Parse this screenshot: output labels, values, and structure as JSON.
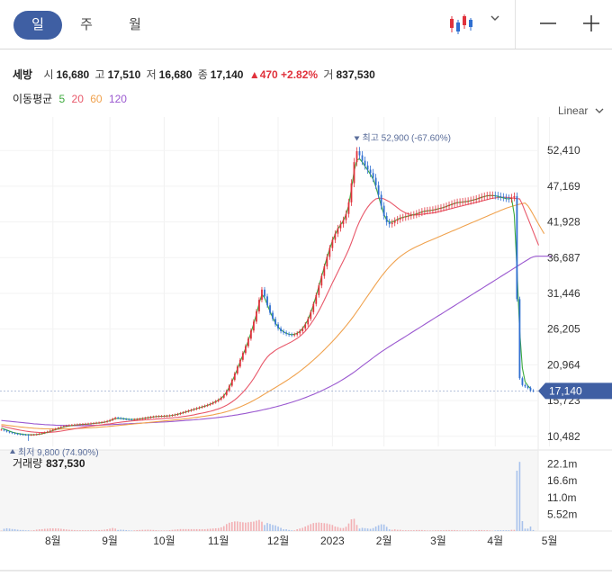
{
  "toolbar": {
    "tabs": [
      {
        "label": "일",
        "active": true
      },
      {
        "label": "주",
        "active": false
      },
      {
        "label": "월",
        "active": false
      }
    ],
    "chart_type_icon": "candlestick-icon",
    "caret_icon": "chevron-down-icon",
    "zoom_out_icon": "minus-icon",
    "zoom_in_icon": "plus-icon"
  },
  "quote": {
    "name": "세방",
    "open_label": "시",
    "open": "16,680",
    "high_label": "고",
    "high": "17,510",
    "low_label": "저",
    "low": "16,680",
    "close_label": "종",
    "close": "17,140",
    "change": "▲470 +2.82%",
    "volume_label": "거",
    "volume": "837,530"
  },
  "moving_average": {
    "label": "이동평균",
    "periods": [
      {
        "value": "5",
        "color": "#3daa3d"
      },
      {
        "value": "20",
        "color": "#e8586a"
      },
      {
        "value": "60",
        "color": "#f0a24e"
      },
      {
        "value": "120",
        "color": "#9b59d0"
      }
    ]
  },
  "scale_label": "Linear",
  "colors": {
    "up": "#e0323c",
    "down": "#2f6fd1",
    "current_price": "#3f5fa3",
    "annotation": "#5b6e9b"
  },
  "volume_panel": {
    "label": "거래량",
    "value": "837,530"
  },
  "chart_data": {
    "type": "candlestick",
    "y_axis_ticks": [
      "52,410",
      "47,169",
      "41,928",
      "36,687",
      "31,446",
      "26,205",
      "20,964",
      "15,723",
      "10,482"
    ],
    "y_range": [
      9000,
      56000
    ],
    "current_price_label": "17,140",
    "current_price": 17140,
    "max_annotation": "최고 52,900 (-67.60%)",
    "max_value": 52900,
    "min_annotation": "최저 9,800 (74.90%)",
    "min_value": 9800,
    "x_labels": [
      "8월",
      "9월",
      "10월",
      "11월",
      "12월",
      "2023",
      "2월",
      "3월",
      "4월",
      "5월"
    ],
    "x_label_index": [
      19,
      40,
      60,
      80,
      102,
      122,
      141,
      161,
      182,
      202
    ],
    "close": [
      11450,
      11330,
      11180,
      11050,
      10950,
      10860,
      10800,
      10760,
      10720,
      10700,
      10680,
      10690,
      10720,
      10780,
      10860,
      10950,
      11060,
      11180,
      11320,
      11460,
      11600,
      11740,
      11860,
      11960,
      12040,
      12100,
      12150,
      12190,
      12220,
      12250,
      12280,
      12310,
      12340,
      12380,
      12420,
      12460,
      12500,
      12550,
      12620,
      12720,
      12860,
      13050,
      13200,
      13150,
      13080,
      13020,
      12980,
      12960,
      12950,
      12970,
      13010,
      13060,
      13120,
      13180,
      13250,
      13310,
      13360,
      13400,
      13420,
      13440,
      13460,
      13480,
      13520,
      13580,
      13660,
      13760,
      13880,
      14000,
      14120,
      14240,
      14360,
      14480,
      14600,
      14720,
      14840,
      14960,
      15100,
      15260,
      15440,
      15640,
      15860,
      16150,
      16550,
      17150,
      17900,
      18750,
      19700,
      20700,
      21700,
      22700,
      23700,
      24800,
      26000,
      27300,
      28800,
      30500,
      32000,
      31000,
      29700,
      28600,
      27700,
      26900,
      26300,
      25900,
      25700,
      25500,
      25400,
      25350,
      25400,
      25600,
      25900,
      26300,
      26900,
      27700,
      28700,
      29900,
      31200,
      32600,
      34000,
      35400,
      36800,
      38100,
      39300,
      40200,
      41000,
      41600,
      42200,
      43100,
      44800,
      47600,
      50700,
      52300,
      51700,
      50900,
      50200,
      49600,
      49100,
      48400,
      47300,
      45900,
      44300,
      42800,
      41900,
      41600,
      41800,
      42100,
      42300,
      42500,
      42600,
      42700,
      42800,
      42900,
      43000,
      43150,
      43300,
      43450,
      43550,
      43600,
      43650,
      43700,
      43800,
      43900,
      44000,
      44100,
      44250,
      44400,
      44550,
      44700,
      44800,
      44850,
      44900,
      44950,
      45000,
      45100,
      45200,
      45300,
      45450,
      45600,
      45700,
      45800,
      45850,
      45850,
      45800,
      45700,
      45600,
      45500,
      45400,
      45300,
      45500,
      45700,
      30600,
      19000,
      18000,
      17800,
      17600,
      17200,
      17140
    ],
    "ma5": [
      11700,
      11550,
      11400,
      11250,
      11100,
      10990,
      10900,
      10830,
      10770,
      10730,
      10710,
      10700,
      10710,
      10740,
      10790,
      10860,
      10950,
      11060,
      11180,
      11320,
      11460,
      11600,
      11730,
      11840,
      11930,
      12000,
      12060,
      12110,
      12150,
      12190,
      12220,
      12250,
      12280,
      12320,
      12360,
      12400,
      12440,
      12490,
      12550,
      12640,
      12760,
      12920,
      13080,
      13120,
      13100,
      13060,
      13010,
      12980,
      12960,
      12960,
      12990,
      13030,
      13080,
      13140,
      13200,
      13270,
      13320,
      13370,
      13400,
      13420,
      13440,
      13460,
      13490,
      13550,
      13620,
      13710,
      13820,
      13940,
      14060,
      14180,
      14300,
      14420,
      14540,
      14660,
      14780,
      14900,
      15030,
      15190,
      15360,
      15560,
      15780,
      16070,
      16450,
      17000,
      17700,
      18500,
      19400,
      20350,
      21400,
      22400,
      23400,
      24500,
      25700,
      27000,
      28400,
      30000,
      31300,
      30800,
      29800,
      28800,
      27900,
      27100,
      26500,
      26100,
      25800,
      25600,
      25450,
      25400,
      25450,
      25600,
      25900,
      26300,
      26900,
      27600,
      28600,
      29800,
      31100,
      32500,
      33900,
      35300,
      36700,
      38000,
      39200,
      40100,
      40900,
      41500,
      42100,
      43000,
      44400,
      46800,
      49400,
      51000,
      51200,
      50700,
      50100,
      49500,
      48900,
      48200,
      47100,
      45700,
      44300,
      43000,
      42200,
      41900,
      41900,
      42100,
      42300,
      42500,
      42600,
      42700,
      42800,
      42900,
      43000,
      43100,
      43250,
      43400,
      43500,
      43550,
      43600,
      43650,
      43750,
      43850,
      43950,
      44050,
      44200,
      44350,
      44500,
      44650,
      44750,
      44800,
      44850,
      44900,
      44950,
      45050,
      45150,
      45250,
      45400,
      45550,
      45650,
      45750,
      45800,
      45800,
      45750,
      45650,
      45550,
      45450,
      45350,
      45300,
      45400,
      43000,
      35000,
      26000,
      20500,
      18500,
      17900,
      17500
    ],
    "ma20": [
      12000,
      11900,
      11800,
      11700,
      11610,
      11530,
      11450,
      11380,
      11310,
      11250,
      11190,
      11140,
      11100,
      11070,
      11050,
      11040,
      11040,
      11050,
      11070,
      11100,
      11140,
      11190,
      11250,
      11310,
      11370,
      11440,
      11510,
      11580,
      11650,
      11720,
      11790,
      11850,
      11910,
      11970,
      12020,
      12070,
      12120,
      12170,
      12220,
      12270,
      12320,
      12380,
      12440,
      12500,
      12550,
      12600,
      12650,
      12690,
      12730,
      12770,
      12800,
      12830,
      12860,
      12890,
      12920,
      12950,
      12980,
      13010,
      13040,
      13070,
      13100,
      13130,
      13160,
      13190,
      13230,
      13270,
      13320,
      13380,
      13440,
      13500,
      13570,
      13640,
      13720,
      13800,
      13880,
      13960,
      14050,
      14150,
      14260,
      14380,
      14510,
      14660,
      14840,
      15040,
      15270,
      15530,
      15820,
      16150,
      16520,
      16930,
      17380,
      17870,
      18400,
      18980,
      19610,
      20300,
      21000,
      21600,
      22100,
      22500,
      22800,
      23100,
      23350,
      23550,
      23750,
      23950,
      24150,
      24350,
      24600,
      24850,
      25150,
      25500,
      25900,
      26400,
      26950,
      27550,
      28200,
      28900,
      29650,
      30450,
      31300,
      32150,
      33000,
      33800,
      34600,
      35400,
      36200,
      37000,
      37900,
      38900,
      40000,
      41100,
      42000,
      42800,
      43500,
      44100,
      44600,
      45000,
      45300,
      45400,
      45400,
      45300,
      45100,
      44900,
      44600,
      44300,
      44000,
      43700,
      43450,
      43250,
      43100,
      43000,
      42950,
      42950,
      43000,
      43050,
      43100,
      43150,
      43200,
      43250,
      43300,
      43400,
      43500,
      43600,
      43700,
      43800,
      43900,
      44000,
      44100,
      44200,
      44300,
      44400,
      44500,
      44600,
      44700,
      44800,
      44900,
      45000,
      45100,
      45200,
      45300,
      45400,
      45450,
      45500,
      45550,
      45550,
      45550,
      45500,
      45450,
      45400,
      45350,
      45300,
      44500,
      43500,
      42500,
      41500,
      40500,
      39500,
      38500
    ],
    "ma60": [
      12200,
      12150,
      12100,
      12050,
      12000,
      11950,
      11900,
      11850,
      11810,
      11770,
      11730,
      11700,
      11670,
      11640,
      11620,
      11600,
      11580,
      11570,
      11560,
      11550,
      11550,
      11550,
      11550,
      11560,
      11570,
      11580,
      11590,
      11610,
      11630,
      11650,
      11670,
      11690,
      11710,
      11730,
      11760,
      11790,
      11820,
      11850,
      11880,
      11910,
      11940,
      11980,
      12020,
      12060,
      12100,
      12140,
      12180,
      12220,
      12260,
      12300,
      12340,
      12380,
      12420,
      12460,
      12500,
      12540,
      12580,
      12620,
      12660,
      12700,
      12740,
      12780,
      12820,
      12860,
      12900,
      12940,
      12980,
      13020,
      13060,
      13110,
      13160,
      13210,
      13260,
      13320,
      13380,
      13440,
      13500,
      13570,
      13640,
      13720,
      13800,
      13890,
      13990,
      14100,
      14220,
      14350,
      14490,
      14640,
      14800,
      14970,
      15150,
      15340,
      15540,
      15750,
      15970,
      16200,
      16440,
      16680,
      16920,
      17160,
      17400,
      17640,
      17880,
      18120,
      18370,
      18620,
      18880,
      19150,
      19430,
      19720,
      20020,
      20330,
      20650,
      20980,
      21320,
      21670,
      22030,
      22400,
      22780,
      23170,
      23570,
      23980,
      24400,
      24830,
      25270,
      25720,
      26180,
      26660,
      27160,
      27680,
      28220,
      28780,
      29350,
      29930,
      30510,
      31090,
      31670,
      32240,
      32810,
      33370,
      33910,
      34420,
      34900,
      35350,
      35770,
      36160,
      36520,
      36850,
      37150,
      37420,
      37670,
      37900,
      38110,
      38310,
      38500,
      38680,
      38860,
      39030,
      39200,
      39370,
      39540,
      39710,
      39880,
      40050,
      40220,
      40390,
      40560,
      40730,
      40900,
      41070,
      41240,
      41410,
      41580,
      41750,
      41920,
      42090,
      42260,
      42430,
      42600,
      42770,
      42940,
      43110,
      43280,
      43450,
      43620,
      43780,
      43930,
      44070,
      44200,
      44320,
      44430,
      44530,
      44620,
      44700,
      44300,
      43700,
      43000,
      42300,
      41600,
      40900,
      40200
    ],
    "ma120": [
      12800,
      12760,
      12720,
      12680,
      12640,
      12600,
      12560,
      12520,
      12480,
      12440,
      12400,
      12360,
      12320,
      12290,
      12260,
      12230,
      12200,
      12180,
      12160,
      12140,
      12120,
      12100,
      12090,
      12080,
      12070,
      12060,
      12050,
      12050,
      12050,
      12050,
      12050,
      12060,
      12070,
      12080,
      12090,
      12100,
      12110,
      12130,
      12150,
      12170,
      12190,
      12210,
      12230,
      12250,
      12270,
      12290,
      12310,
      12330,
      12350,
      12370,
      12390,
      12410,
      12430,
      12450,
      12470,
      12490,
      12510,
      12530,
      12550,
      12570,
      12590,
      12610,
      12630,
      12660,
      12690,
      12720,
      12750,
      12780,
      12810,
      12840,
      12870,
      12900,
      12930,
      12960,
      13000,
      13040,
      13080,
      13120,
      13160,
      13200,
      13250,
      13300,
      13350,
      13400,
      13460,
      13520,
      13580,
      13640,
      13710,
      13780,
      13850,
      13920,
      14000,
      14080,
      14160,
      14240,
      14330,
      14420,
      14510,
      14600,
      14700,
      14800,
      14900,
      15010,
      15120,
      15230,
      15350,
      15470,
      15600,
      15730,
      15870,
      16010,
      16160,
      16310,
      16470,
      16630,
      16800,
      16980,
      17160,
      17350,
      17540,
      17740,
      17950,
      18160,
      18380,
      18610,
      18850,
      19100,
      19360,
      19630,
      19910,
      20200,
      20500,
      20800,
      21100,
      21400,
      21700,
      22000,
      22300,
      22590,
      22870,
      23140,
      23400,
      23650,
      23900,
      24150,
      24400,
      24650,
      24900,
      25150,
      25400,
      25650,
      25900,
      26150,
      26400,
      26650,
      26900,
      27150,
      27400,
      27650,
      27900,
      28150,
      28400,
      28650,
      28900,
      29150,
      29400,
      29650,
      29900,
      30150,
      30400,
      30650,
      30900,
      31150,
      31400,
      31650,
      31900,
      32150,
      32400,
      32650,
      32900,
      33150,
      33400,
      33650,
      33900,
      34150,
      34400,
      34650,
      34900,
      35150,
      35400,
      35650,
      35900,
      36150,
      36400,
      36650,
      36800,
      36900,
      36900,
      36900,
      36900,
      36900,
      36900,
      36900
    ],
    "volume_axis_ticks": [
      "22.1m",
      "16.6m",
      "11.0m",
      "5.52m"
    ],
    "volume_range": [
      0,
      25000000
    ]
  }
}
